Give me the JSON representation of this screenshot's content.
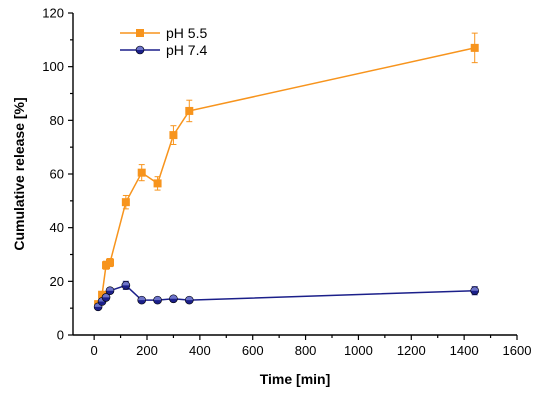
{
  "chart_data": {
    "type": "line",
    "title": "",
    "xlabel": "Time [min]",
    "ylabel": "Cumulative release [%]",
    "xlim": [
      -80,
      1600
    ],
    "ylim": [
      0,
      120
    ],
    "xticks": [
      0,
      200,
      400,
      600,
      800,
      1000,
      1200,
      1400,
      1600
    ],
    "yticks": [
      0,
      20,
      40,
      60,
      80,
      100,
      120
    ],
    "grid": false,
    "legend_position": "top-left",
    "series": [
      {
        "name": "pH 5.5",
        "color": "#F7941D",
        "marker": "square",
        "x": [
          15,
          30,
          45,
          60,
          120,
          180,
          240,
          300,
          360,
          1440
        ],
        "y": [
          11.5,
          15.0,
          26.0,
          27.0,
          49.5,
          60.5,
          56.5,
          74.5,
          83.5,
          107.0
        ],
        "err": [
          1.0,
          1.0,
          1.5,
          1.5,
          2.5,
          3.0,
          2.5,
          3.5,
          4.0,
          5.5
        ]
      },
      {
        "name": "pH 7.4",
        "color": "#1B1F8A",
        "marker": "circle",
        "x": [
          15,
          30,
          45,
          60,
          120,
          180,
          240,
          300,
          360,
          1440
        ],
        "y": [
          10.5,
          12.5,
          14.0,
          16.5,
          18.5,
          13.0,
          13.0,
          13.5,
          13.0,
          16.5
        ],
        "err": [
          0.8,
          0.8,
          1.0,
          1.0,
          1.5,
          0.8,
          0.8,
          0.8,
          0.8,
          1.5
        ]
      }
    ]
  }
}
